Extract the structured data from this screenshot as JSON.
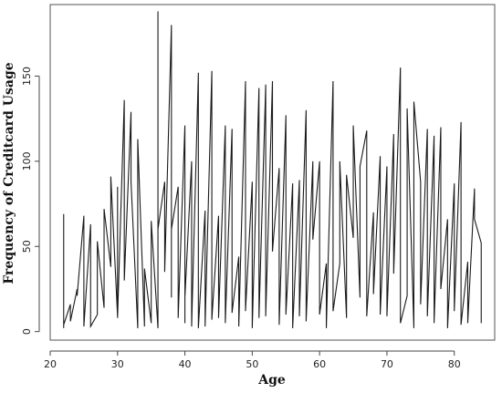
{
  "chart_data": {
    "type": "line",
    "title": "",
    "xlabel": "Age",
    "ylabel": "Frequency of Creditcard Usage",
    "xlim": [
      20,
      86
    ],
    "ylim": [
      -5,
      192
    ],
    "xticks": [
      "20",
      "30",
      "40",
      "50",
      "60",
      "70",
      "80"
    ],
    "yticks": [
      "0",
      "50",
      "100",
      "150"
    ],
    "grid": false,
    "legend": "none",
    "series": [
      {
        "color": "#1a1a1a",
        "x": [
          22,
          22,
          22,
          23,
          23,
          24,
          24,
          25,
          25,
          25,
          26,
          26,
          27,
          27,
          28,
          28,
          29,
          29,
          30,
          30,
          30,
          31,
          31,
          31,
          32,
          32,
          33,
          33,
          34,
          34,
          35,
          35,
          36,
          36,
          36,
          37,
          37,
          38,
          38,
          38,
          39,
          39,
          40,
          40,
          40,
          41,
          41,
          42,
          42,
          43,
          43,
          44,
          44,
          44,
          45,
          45,
          46,
          46,
          47,
          47,
          48,
          48,
          49,
          49,
          50,
          50,
          51,
          51,
          52,
          52,
          53,
          53,
          54,
          54,
          55,
          55,
          56,
          56,
          57,
          57,
          58,
          58,
          59,
          59,
          60,
          60,
          61,
          61,
          62,
          62,
          63,
          63,
          64,
          64,
          65,
          65,
          66,
          66,
          67,
          67,
          68,
          68,
          69,
          69,
          70,
          70,
          71,
          71,
          72,
          72,
          73,
          73,
          74,
          74,
          75,
          75,
          76,
          76,
          77,
          77,
          78,
          78,
          79,
          79,
          80,
          80,
          81,
          81,
          82,
          82,
          83,
          83,
          84,
          84
        ],
        "y": [
          69,
          2,
          4,
          16,
          6,
          25,
          21,
          68,
          18,
          3,
          63,
          3,
          10,
          53,
          14,
          72,
          38,
          91,
          9,
          85,
          8,
          136,
          45,
          30,
          129,
          88,
          2,
          113,
          3,
          37,
          5,
          65,
          2,
          188,
          60,
          88,
          35,
          180,
          20,
          60,
          85,
          8,
          121,
          5,
          20,
          100,
          3,
          152,
          2,
          71,
          3,
          153,
          78,
          7,
          68,
          8,
          121,
          5,
          119,
          11,
          44,
          3,
          147,
          12,
          88,
          2,
          143,
          8,
          145,
          9,
          147,
          47,
          96,
          4,
          127,
          10,
          87,
          2,
          89,
          9,
          130,
          6,
          100,
          54,
          100,
          10,
          40,
          2,
          147,
          12,
          40,
          100,
          8,
          92,
          55,
          121,
          20,
          97,
          118,
          9,
          70,
          22,
          103,
          10,
          97,
          9,
          116,
          34,
          155,
          5,
          21,
          131,
          2,
          135,
          88,
          16,
          119,
          9,
          115,
          5,
          120,
          25,
          66,
          2,
          87,
          12,
          123,
          4,
          41,
          5,
          84,
          66,
          52,
          5
        ]
      }
    ]
  }
}
